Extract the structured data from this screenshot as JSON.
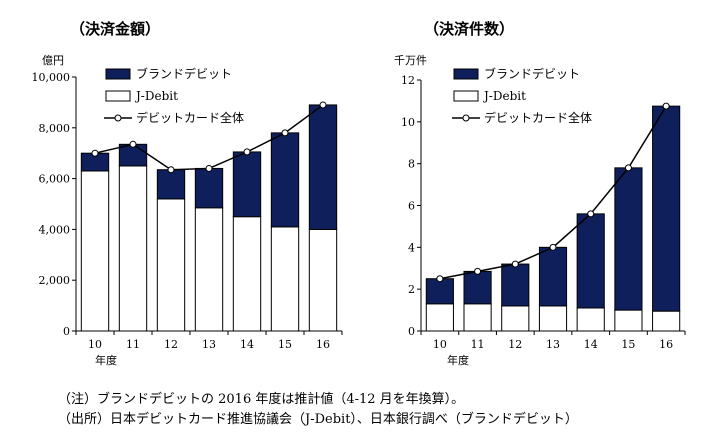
{
  "chart_data": [
    {
      "type": "bar",
      "title": "（決済金額）",
      "unit": "億円",
      "xlabel": "年度",
      "categories": [
        "10",
        "11",
        "12",
        "13",
        "14",
        "15",
        "16"
      ],
      "ylim": [
        0,
        10000
      ],
      "yticks": [
        0,
        2000,
        4000,
        6000,
        8000,
        10000
      ],
      "ytick_labels": [
        "0",
        "2,000",
        "4,000",
        "6,000",
        "8,000",
        "10,000"
      ],
      "grid": false,
      "legend_placement": "top-left",
      "series": [
        {
          "name": "J-Debit",
          "kind": "stacked-bar",
          "color": "#ffffff",
          "values": [
            6300,
            6500,
            5200,
            4850,
            4500,
            4100,
            4000
          ]
        },
        {
          "name": "ブランドデビット",
          "kind": "stacked-bar",
          "color": "#0f1f5c",
          "values": [
            700,
            850,
            1150,
            1550,
            2550,
            3700,
            4900
          ]
        },
        {
          "name": "デビットカード全体",
          "kind": "line",
          "color": "#000000",
          "values": [
            7000,
            7350,
            6350,
            6400,
            7050,
            7800,
            8900
          ]
        }
      ]
    },
    {
      "type": "bar",
      "title": "（決済件数）",
      "unit": "千万件",
      "xlabel": "年度",
      "categories": [
        "10",
        "11",
        "12",
        "13",
        "14",
        "15",
        "16"
      ],
      "ylim": [
        0,
        12
      ],
      "yticks": [
        0,
        2,
        4,
        6,
        8,
        10,
        12
      ],
      "ytick_labels": [
        "0",
        "2",
        "4",
        "6",
        "8",
        "10",
        "12"
      ],
      "grid": false,
      "legend_placement": "top-left",
      "series": [
        {
          "name": "J-Debit",
          "kind": "stacked-bar",
          "color": "#ffffff",
          "values": [
            1.3,
            1.3,
            1.2,
            1.2,
            1.1,
            1.0,
            0.95
          ]
        },
        {
          "name": "ブランドデビット",
          "kind": "stacked-bar",
          "color": "#0f1f5c",
          "values": [
            1.2,
            1.55,
            2.0,
            2.8,
            4.5,
            6.8,
            9.8
          ]
        },
        {
          "name": "デビットカード全体",
          "kind": "line",
          "color": "#000000",
          "values": [
            2.5,
            2.85,
            3.2,
            4.0,
            5.6,
            7.8,
            10.75
          ]
        }
      ]
    }
  ],
  "notes": {
    "note": "（注）ブランドデビットの 2016 年度は推計値（4-12 月を年換算）。",
    "source": "（出所）日本デビットカード推進協議会（J-Debit）、日本銀行調べ（ブランドデビット）"
  }
}
